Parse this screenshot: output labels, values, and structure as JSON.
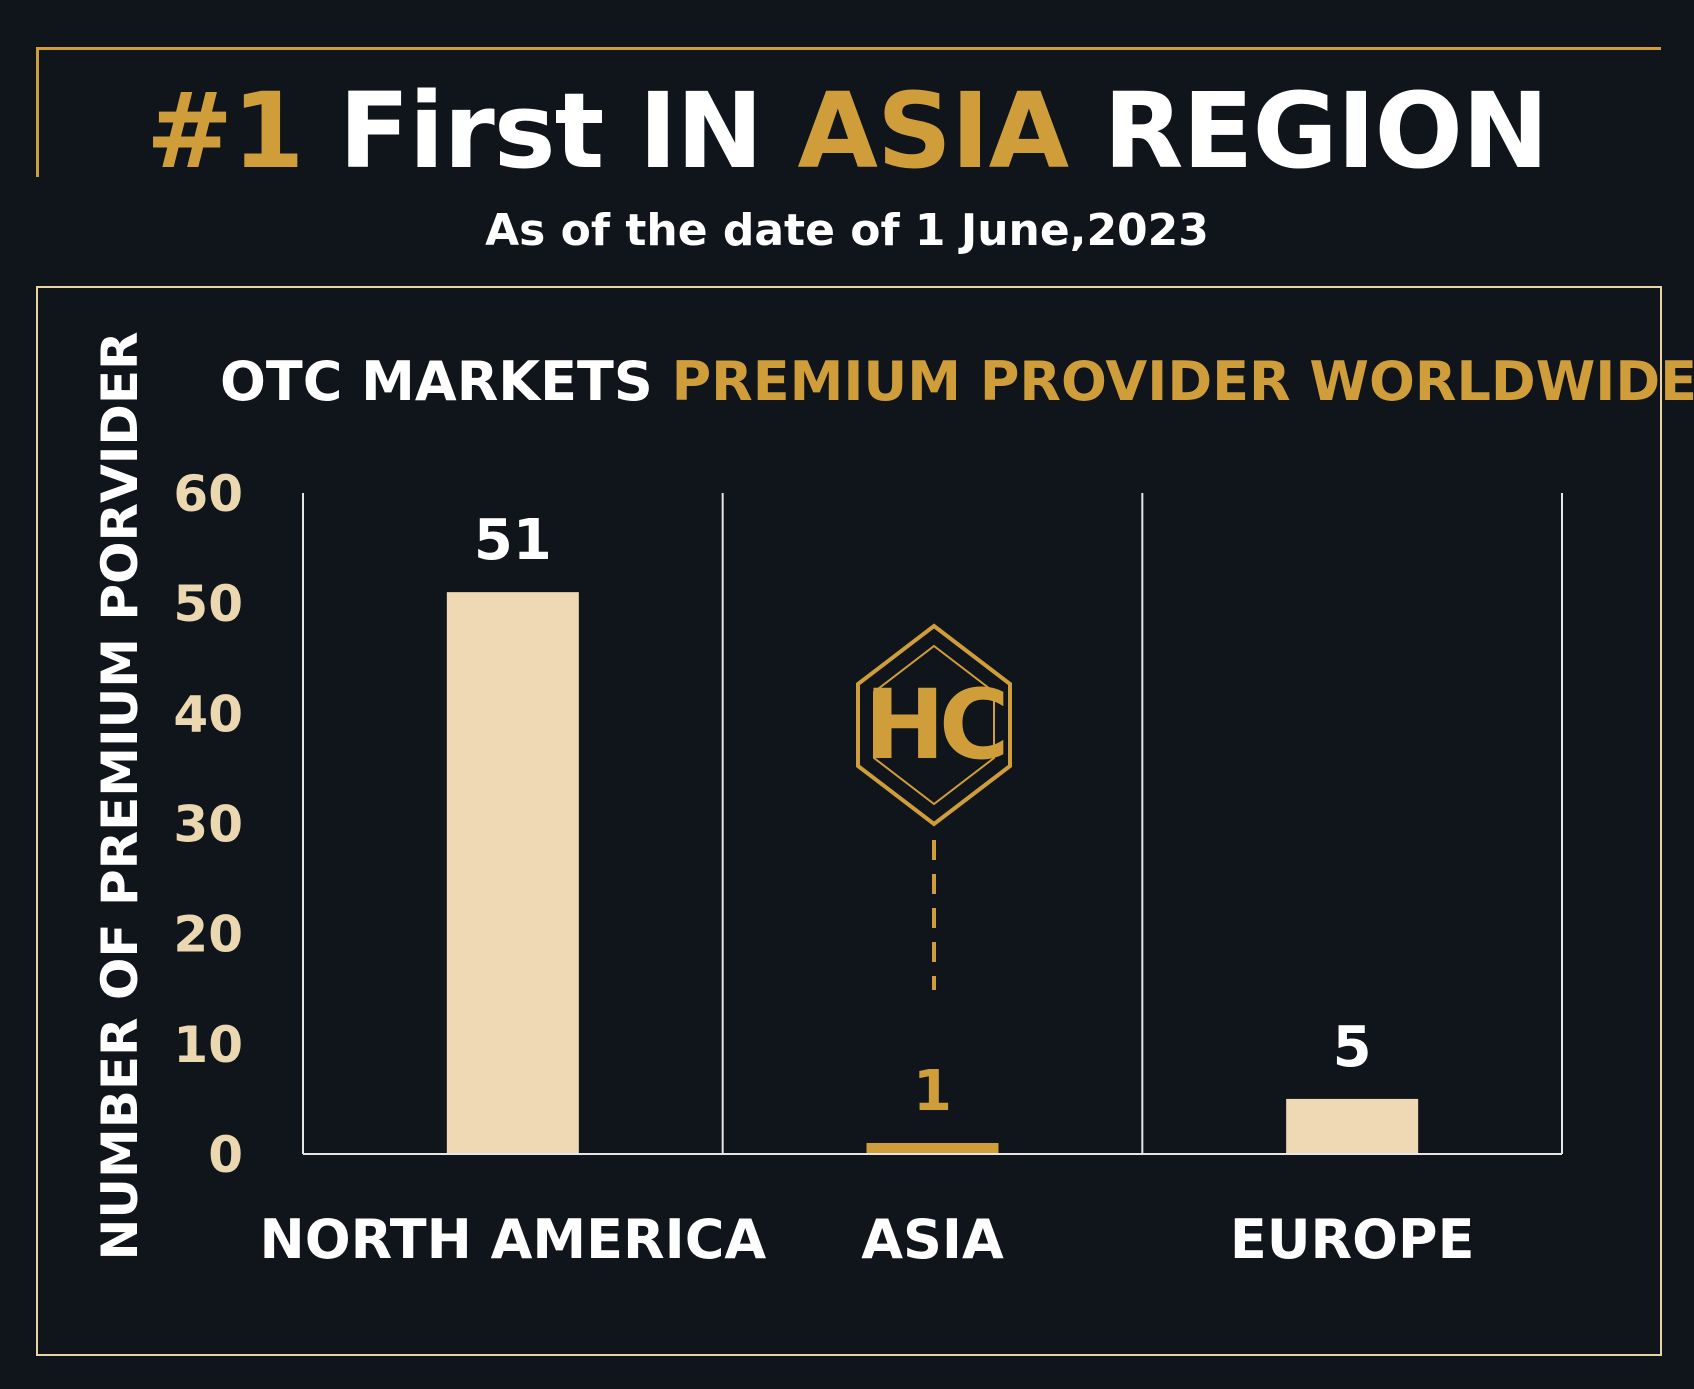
{
  "header": {
    "title_rank": "#1",
    "title_first": "First IN",
    "title_region_highlight": "ASIA",
    "title_region": "REGION",
    "subtitle": "As of the date of 1 June,2023"
  },
  "logo": {
    "text": "HC"
  },
  "colors": {
    "background": "#0f151b",
    "gold": "#d09d3b",
    "bar": "#efd9b4",
    "highlight_bar": "#d09d3b",
    "text": "#ffffff",
    "tick": "#ebd8b1"
  },
  "chart_data": {
    "type": "bar",
    "title_part1": "OTC MARKETS",
    "title_part2": "PREMIUM PROVIDER WORLDWIDE",
    "ylabel": "NUMBER OF PREMIUM PORVIDER",
    "xlabel": "",
    "categories": [
      "NORTH AMERICA",
      "ASIA",
      "EUROPE"
    ],
    "values": [
      51,
      1,
      5
    ],
    "value_labels": [
      "51",
      "1",
      "5"
    ],
    "highlight_category": "ASIA",
    "ylim": [
      0,
      60
    ],
    "yticks": [
      "60",
      "50",
      "40",
      "30",
      "20",
      "10",
      "0"
    ],
    "grid": false,
    "legend": "none"
  }
}
